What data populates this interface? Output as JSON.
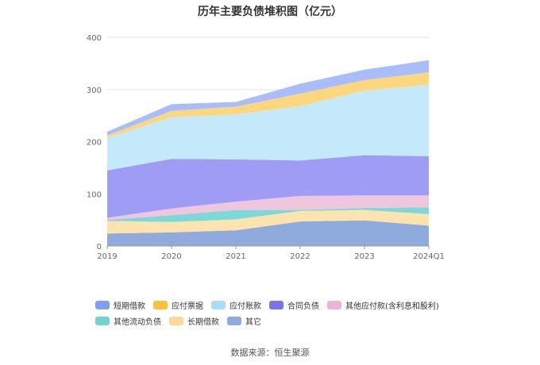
{
  "chart_data": {
    "type": "area",
    "stacked": true,
    "title": "历年主要负债堆积图（亿元）",
    "categories": [
      "2019",
      "2020",
      "2021",
      "2022",
      "2023",
      "2024Q1"
    ],
    "ylim": [
      0,
      400
    ],
    "yticks": [
      0,
      100,
      200,
      300,
      400
    ],
    "grid": true,
    "legend_position": "bottom",
    "series": [
      {
        "name": "其它",
        "color": "#8faadc",
        "values": [
          24,
          26,
          30,
          47,
          49,
          39
        ]
      },
      {
        "name": "长期借款",
        "color": "#fde3ad",
        "values": [
          24,
          20,
          21,
          20,
          20,
          22
        ]
      },
      {
        "name": "其他流动负债",
        "color": "#7fd8d8",
        "values": [
          2,
          13,
          18,
          2,
          4,
          13
        ]
      },
      {
        "name": "其他应付款(含利息和股利)",
        "color": "#eec6de",
        "values": [
          4,
          13,
          16,
          27,
          24,
          23
        ]
      },
      {
        "name": "合同负债",
        "color": "#9f9cf6",
        "values": [
          91,
          95,
          81,
          68,
          77,
          75
        ]
      },
      {
        "name": "应付账款",
        "color": "#c4e9fb",
        "values": [
          62,
          80,
          86,
          104,
          124,
          137
        ]
      },
      {
        "name": "应付票据",
        "color": "#fdd77d",
        "values": [
          5,
          12,
          15,
          24,
          20,
          24
        ]
      },
      {
        "name": "短期借款",
        "color": "#a9bdfd",
        "values": [
          7,
          13,
          9,
          19,
          20,
          23
        ]
      }
    ],
    "legend_order": [
      "短期借款",
      "应付票据",
      "应付账款",
      "合同负债",
      "其他应付款(含利息和股利)",
      "其他流动负债",
      "长期借款",
      "其它"
    ],
    "legend_colors": {
      "短期借款": "#7f9ff5",
      "应付票据": "#f9c23c",
      "应付账款": "#a9ddf7",
      "合同负债": "#7a73ec",
      "其他应付款(含利息和股利)": "#e8b5d5",
      "其他流动负债": "#6fd3d3",
      "长期借款": "#fbd99a",
      "其它": "#8faadc"
    }
  },
  "source_text": "数据来源：恒生聚源"
}
